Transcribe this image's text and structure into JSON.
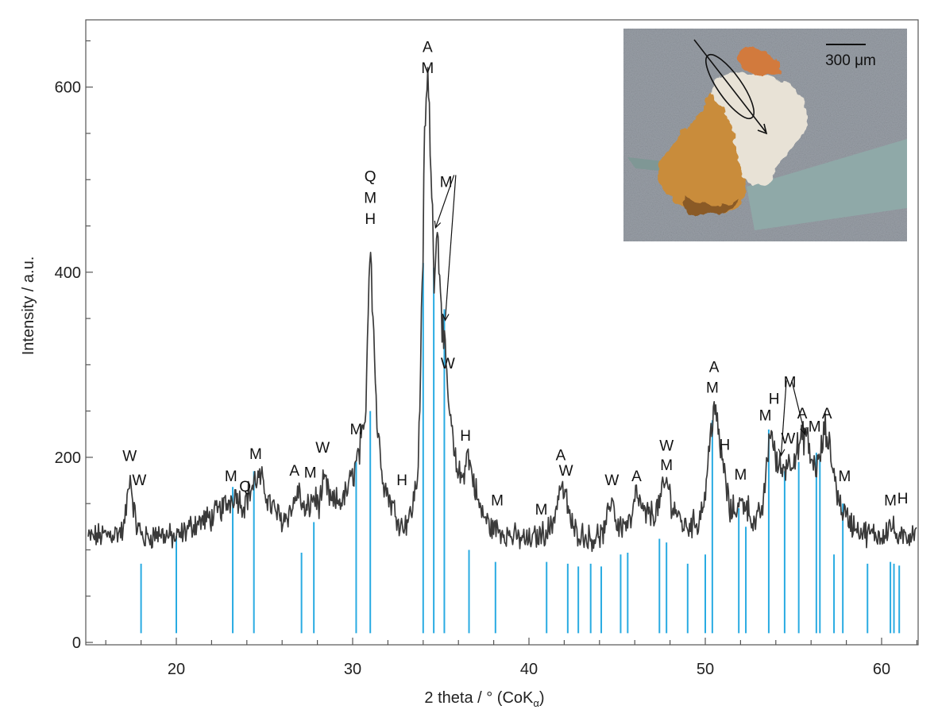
{
  "chart_data": {
    "type": "line",
    "xlabel": "2 theta / ° (CoK",
    "xlabel_subscript": "α",
    "xlabel_suffix": ")",
    "ylabel": "Intensity / a.u.",
    "xlim": [
      15,
      62
    ],
    "ylim": [
      0,
      675
    ],
    "x_ticks": [
      20,
      30,
      40,
      50,
      60
    ],
    "y_ticks": [
      0,
      200,
      400,
      600
    ],
    "grid": false,
    "line_color": "#3a3a3a",
    "reference_color": "#29abe2",
    "pattern_anchors": [
      [
        15,
        113
      ],
      [
        16.5,
        118
      ],
      [
        17.0,
        120
      ],
      [
        17.2,
        150
      ],
      [
        17.35,
        183
      ],
      [
        17.5,
        160
      ],
      [
        17.7,
        128
      ],
      [
        18.2,
        112
      ],
      [
        19.0,
        118
      ],
      [
        20.0,
        112
      ],
      [
        21.0,
        128
      ],
      [
        22.0,
        135
      ],
      [
        23.0,
        152
      ],
      [
        23.3,
        162
      ],
      [
        23.8,
        148
      ],
      [
        24.3,
        168
      ],
      [
        24.6,
        178
      ],
      [
        24.9,
        172
      ],
      [
        25.3,
        150
      ],
      [
        26.0,
        132
      ],
      [
        26.6,
        145
      ],
      [
        26.9,
        165
      ],
      [
        27.3,
        138
      ],
      [
        27.8,
        158
      ],
      [
        28.1,
        148
      ],
      [
        28.4,
        175
      ],
      [
        28.8,
        150
      ],
      [
        29.5,
        155
      ],
      [
        30.0,
        180
      ],
      [
        30.4,
        208
      ],
      [
        30.7,
        230
      ],
      [
        30.9,
        375
      ],
      [
        31.0,
        445
      ],
      [
        31.15,
        360
      ],
      [
        31.4,
        230
      ],
      [
        31.8,
        170
      ],
      [
        32.2,
        150
      ],
      [
        32.8,
        125
      ],
      [
        33.3,
        138
      ],
      [
        33.7,
        180
      ],
      [
        33.95,
        380
      ],
      [
        34.1,
        560
      ],
      [
        34.25,
        612
      ],
      [
        34.45,
        520
      ],
      [
        34.6,
        400
      ],
      [
        34.75,
        445
      ],
      [
        34.9,
        420
      ],
      [
        35.1,
        340
      ],
      [
        35.3,
        290
      ],
      [
        35.5,
        250
      ],
      [
        35.8,
        195
      ],
      [
        36.2,
        175
      ],
      [
        36.5,
        205
      ],
      [
        36.8,
        180
      ],
      [
        37.2,
        145
      ],
      [
        37.8,
        125
      ],
      [
        38.2,
        122
      ],
      [
        39.0,
        115
      ],
      [
        40.0,
        110
      ],
      [
        40.8,
        118
      ],
      [
        41.3,
        125
      ],
      [
        41.8,
        170
      ],
      [
        42.1,
        155
      ],
      [
        42.5,
        122
      ],
      [
        43.5,
        112
      ],
      [
        44.3,
        118
      ],
      [
        44.7,
        160
      ],
      [
        45.0,
        125
      ],
      [
        45.8,
        130
      ],
      [
        46.1,
        162
      ],
      [
        46.5,
        138
      ],
      [
        47.2,
        140
      ],
      [
        47.8,
        175
      ],
      [
        48.1,
        150
      ],
      [
        48.8,
        125
      ],
      [
        49.6,
        130
      ],
      [
        50.0,
        160
      ],
      [
        50.3,
        225
      ],
      [
        50.5,
        262
      ],
      [
        50.75,
        220
      ],
      [
        51.0,
        195
      ],
      [
        51.4,
        140
      ],
      [
        52.0,
        150
      ],
      [
        52.3,
        152
      ],
      [
        52.8,
        125
      ],
      [
        53.3,
        150
      ],
      [
        53.7,
        235
      ],
      [
        54.0,
        195
      ],
      [
        54.3,
        188
      ],
      [
        54.8,
        195
      ],
      [
        55.3,
        210
      ],
      [
        55.7,
        228
      ],
      [
        56.0,
        195
      ],
      [
        56.4,
        190
      ],
      [
        56.8,
        230
      ],
      [
        57.2,
        195
      ],
      [
        57.6,
        150
      ],
      [
        58.2,
        130
      ],
      [
        59.0,
        118
      ],
      [
        60.0,
        115
      ],
      [
        60.5,
        128
      ],
      [
        61.0,
        110
      ],
      [
        61.5,
        115
      ],
      [
        62.0,
        125
      ]
    ],
    "reference_lines": [
      [
        18.0,
        85
      ],
      [
        20.0,
        115
      ],
      [
        23.2,
        168
      ],
      [
        24.4,
        185
      ],
      [
        27.1,
        97
      ],
      [
        27.8,
        130
      ],
      [
        30.2,
        195
      ],
      [
        31.0,
        250
      ],
      [
        34.0,
        410
      ],
      [
        34.6,
        405
      ],
      [
        35.2,
        360
      ],
      [
        36.6,
        100
      ],
      [
        38.1,
        87
      ],
      [
        41.0,
        87
      ],
      [
        42.2,
        85
      ],
      [
        42.8,
        82
      ],
      [
        43.5,
        85
      ],
      [
        44.1,
        82
      ],
      [
        45.2,
        95
      ],
      [
        45.6,
        97
      ],
      [
        47.4,
        112
      ],
      [
        47.8,
        108
      ],
      [
        49.0,
        85
      ],
      [
        50.0,
        95
      ],
      [
        50.4,
        240
      ],
      [
        51.9,
        145
      ],
      [
        52.3,
        125
      ],
      [
        53.6,
        230
      ],
      [
        54.5,
        185
      ],
      [
        55.3,
        195
      ],
      [
        56.3,
        205
      ],
      [
        56.5,
        200
      ],
      [
        57.3,
        95
      ],
      [
        57.8,
        150
      ],
      [
        59.2,
        85
      ],
      [
        60.5,
        87
      ],
      [
        60.7,
        85
      ],
      [
        61.0,
        83
      ]
    ],
    "peak_labels": [
      {
        "text": "W",
        "x": 17.35,
        "y": 196
      },
      {
        "text": "W",
        "x": 17.9,
        "y": 170
      },
      {
        "text": "M",
        "x": 23.1,
        "y": 174
      },
      {
        "text": "Q",
        "x": 23.9,
        "y": 163
      },
      {
        "text": "M",
        "x": 24.5,
        "y": 198
      },
      {
        "text": "A",
        "x": 26.7,
        "y": 180
      },
      {
        "text": "M",
        "x": 27.6,
        "y": 178
      },
      {
        "text": "W",
        "x": 28.3,
        "y": 205
      },
      {
        "text": "M",
        "x": 30.2,
        "y": 225
      },
      {
        "text": "Q",
        "x": 31.0,
        "y": 498
      },
      {
        "text": "M",
        "x": 31.0,
        "y": 475
      },
      {
        "text": "H",
        "x": 31.0,
        "y": 452
      },
      {
        "text": "H",
        "x": 32.8,
        "y": 170
      },
      {
        "text": "A",
        "x": 34.25,
        "y": 638
      },
      {
        "text": "M",
        "x": 34.25,
        "y": 615
      },
      {
        "text": "M",
        "x": 35.3,
        "y": 492
      },
      {
        "text": "W",
        "x": 35.4,
        "y": 296
      },
      {
        "text": "H",
        "x": 36.4,
        "y": 218
      },
      {
        "text": "M",
        "x": 38.2,
        "y": 148
      },
      {
        "text": "M",
        "x": 40.7,
        "y": 138
      },
      {
        "text": "A",
        "x": 41.8,
        "y": 197
      },
      {
        "text": "W",
        "x": 42.1,
        "y": 180
      },
      {
        "text": "W",
        "x": 44.7,
        "y": 170
      },
      {
        "text": "A",
        "x": 46.1,
        "y": 174
      },
      {
        "text": "W",
        "x": 47.8,
        "y": 207
      },
      {
        "text": "M",
        "x": 47.8,
        "y": 186
      },
      {
        "text": "A",
        "x": 50.5,
        "y": 292
      },
      {
        "text": "M",
        "x": 50.4,
        "y": 270
      },
      {
        "text": "H",
        "x": 51.1,
        "y": 208
      },
      {
        "text": "M",
        "x": 52.0,
        "y": 176
      },
      {
        "text": "M",
        "x": 53.4,
        "y": 240
      },
      {
        "text": "H",
        "x": 53.9,
        "y": 258
      },
      {
        "text": "M",
        "x": 54.8,
        "y": 276
      },
      {
        "text": "W",
        "x": 54.7,
        "y": 215
      },
      {
        "text": "A",
        "x": 55.5,
        "y": 242
      },
      {
        "text": "M",
        "x": 56.2,
        "y": 228
      },
      {
        "text": "A",
        "x": 56.9,
        "y": 242
      },
      {
        "text": "M",
        "x": 57.9,
        "y": 174
      },
      {
        "text": "M",
        "x": 60.5,
        "y": 148
      },
      {
        "text": "H",
        "x": 61.2,
        "y": 150
      }
    ],
    "arrows": [
      {
        "x1": 35.75,
        "y1": 505,
        "x2": 34.7,
        "y2": 448
      },
      {
        "x1": 35.85,
        "y1": 505,
        "x2": 35.25,
        "y2": 348
      },
      {
        "x1": 54.6,
        "y1": 283,
        "x2": 54.3,
        "y2": 202
      },
      {
        "x1": 54.9,
        "y1": 283,
        "x2": 55.65,
        "y2": 225
      }
    ]
  },
  "inset": {
    "scale_bar_label": "300 μm"
  }
}
